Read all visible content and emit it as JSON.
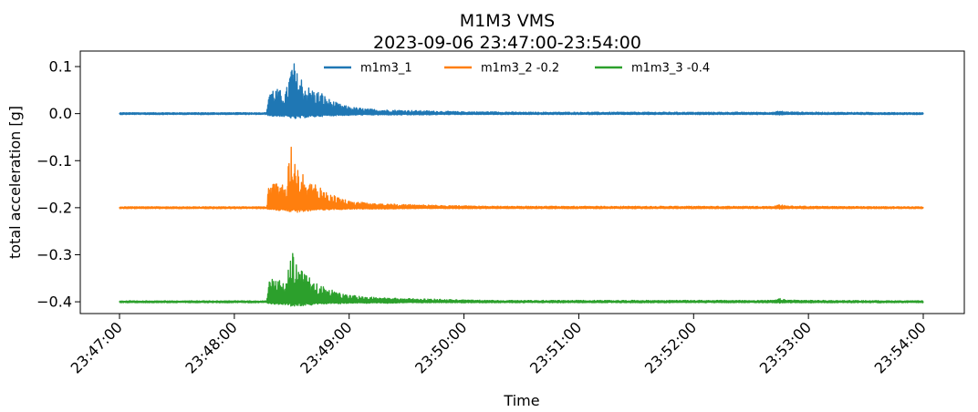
{
  "chart_data": {
    "type": "line",
    "title": "M1M3 VMS",
    "subtitle": "2023-09-06 23:47:00-23:54:00",
    "xlabel": "Time",
    "ylabel": "total acceleration [g]",
    "x_ticks": [
      "23:47:00",
      "23:48:00",
      "23:49:00",
      "23:50:00",
      "23:51:00",
      "23:52:00",
      "23:53:00",
      "23:54:00"
    ],
    "xlim": [
      "23:47:00",
      "23:54:00"
    ],
    "y_ticks": [
      0.1,
      0.0,
      -0.1,
      -0.2,
      -0.3,
      -0.4
    ],
    "y_tick_labels": [
      "0.1",
      "0.0",
      "−0.1",
      "−0.2",
      "−0.3",
      "−0.4"
    ],
    "ylim": [
      -0.425,
      0.133
    ],
    "grid": false,
    "legend_position": "top-center",
    "series": [
      {
        "name": "m1m3_1",
        "color": "#1f77b4",
        "offset": 0.0,
        "baseline": 0.0,
        "envelope_times": [
          "23:47:00",
          "23:48:17",
          "23:48:18",
          "23:48:21",
          "23:48:24",
          "23:48:27",
          "23:48:30",
          "23:48:31",
          "23:48:33",
          "23:48:35",
          "23:48:36",
          "23:48:38",
          "23:48:40",
          "23:48:42",
          "23:48:44",
          "23:48:46",
          "23:48:48",
          "23:48:51",
          "23:48:54",
          "23:48:57",
          "23:49:00",
          "23:49:05",
          "23:49:10",
          "23:49:20",
          "23:49:30",
          "23:49:40",
          "23:49:50",
          "23:50:00",
          "23:50:15",
          "23:50:30",
          "23:51:00",
          "23:51:30",
          "23:52:00",
          "23:52:30",
          "23:52:42",
          "23:52:45",
          "23:52:48",
          "23:53:00",
          "23:54:00"
        ],
        "envelope_upper": [
          0.002,
          0.002,
          0.06,
          0.055,
          0.05,
          0.048,
          0.11,
          0.112,
          0.085,
          0.08,
          0.07,
          0.06,
          0.055,
          0.05,
          0.048,
          0.045,
          0.035,
          0.028,
          0.022,
          0.018,
          0.015,
          0.012,
          0.01,
          0.008,
          0.007,
          0.006,
          0.005,
          0.004,
          0.004,
          0.003,
          0.003,
          0.003,
          0.003,
          0.003,
          0.003,
          0.006,
          0.004,
          0.003,
          0.002
        ],
        "envelope_lower": [
          -0.002,
          -0.002,
          -0.005,
          -0.006,
          -0.006,
          -0.007,
          -0.01,
          -0.012,
          -0.011,
          -0.01,
          -0.009,
          -0.008,
          -0.008,
          -0.007,
          -0.006,
          -0.006,
          -0.005,
          -0.005,
          -0.004,
          -0.004,
          -0.004,
          -0.003,
          -0.003,
          -0.003,
          -0.003,
          -0.003,
          -0.002,
          -0.002,
          -0.002,
          -0.002,
          -0.002,
          -0.002,
          -0.002,
          -0.002,
          -0.002,
          -0.003,
          -0.002,
          -0.002,
          -0.002
        ]
      },
      {
        "name": "m1m3_2 -0.2",
        "color": "#ff7f0e",
        "offset": -0.2,
        "baseline": -0.2,
        "envelope_times": [
          "23:47:00",
          "23:48:17",
          "23:48:18",
          "23:48:21",
          "23:48:24",
          "23:48:27",
          "23:48:30",
          "23:48:31",
          "23:48:33",
          "23:48:35",
          "23:48:36",
          "23:48:38",
          "23:48:40",
          "23:48:42",
          "23:48:44",
          "23:48:46",
          "23:48:48",
          "23:48:51",
          "23:48:54",
          "23:48:57",
          "23:49:00",
          "23:49:05",
          "23:49:10",
          "23:49:20",
          "23:49:30",
          "23:49:40",
          "23:49:50",
          "23:50:00",
          "23:50:15",
          "23:50:30",
          "23:51:00",
          "23:51:30",
          "23:52:00",
          "23:52:30",
          "23:52:42",
          "23:52:45",
          "23:52:48",
          "23:53:00",
          "23:54:00"
        ],
        "envelope_upper": [
          -0.198,
          -0.198,
          -0.14,
          -0.145,
          -0.15,
          -0.15,
          -0.055,
          -0.055,
          -0.11,
          -0.12,
          -0.13,
          -0.14,
          -0.145,
          -0.15,
          -0.155,
          -0.16,
          -0.165,
          -0.172,
          -0.178,
          -0.182,
          -0.185,
          -0.188,
          -0.19,
          -0.192,
          -0.193,
          -0.194,
          -0.195,
          -0.196,
          -0.197,
          -0.197,
          -0.197,
          -0.197,
          -0.197,
          -0.197,
          -0.197,
          -0.192,
          -0.196,
          -0.197,
          -0.198
        ],
        "envelope_lower": [
          -0.202,
          -0.202,
          -0.204,
          -0.205,
          -0.206,
          -0.206,
          -0.21,
          -0.211,
          -0.21,
          -0.209,
          -0.208,
          -0.207,
          -0.207,
          -0.206,
          -0.206,
          -0.205,
          -0.205,
          -0.204,
          -0.204,
          -0.204,
          -0.203,
          -0.203,
          -0.203,
          -0.203,
          -0.202,
          -0.202,
          -0.202,
          -0.202,
          -0.202,
          -0.202,
          -0.202,
          -0.202,
          -0.202,
          -0.202,
          -0.202,
          -0.203,
          -0.202,
          -0.202,
          -0.202
        ]
      },
      {
        "name": "m1m3_3 -0.4",
        "color": "#2ca02c",
        "offset": -0.4,
        "baseline": -0.4,
        "envelope_times": [
          "23:47:00",
          "23:48:17",
          "23:48:18",
          "23:48:21",
          "23:48:24",
          "23:48:27",
          "23:48:30",
          "23:48:31",
          "23:48:33",
          "23:48:35",
          "23:48:36",
          "23:48:38",
          "23:48:40",
          "23:48:42",
          "23:48:44",
          "23:48:46",
          "23:48:48",
          "23:48:51",
          "23:48:54",
          "23:48:57",
          "23:49:00",
          "23:49:05",
          "23:49:10",
          "23:49:20",
          "23:49:30",
          "23:49:40",
          "23:49:50",
          "23:50:00",
          "23:50:15",
          "23:50:30",
          "23:51:00",
          "23:51:30",
          "23:52:00",
          "23:52:30",
          "23:52:42",
          "23:52:45",
          "23:52:48",
          "23:53:00",
          "23:54:00"
        ],
        "envelope_upper": [
          -0.398,
          -0.398,
          -0.345,
          -0.35,
          -0.355,
          -0.358,
          -0.288,
          -0.288,
          -0.32,
          -0.33,
          -0.34,
          -0.345,
          -0.35,
          -0.355,
          -0.36,
          -0.365,
          -0.37,
          -0.375,
          -0.38,
          -0.384,
          -0.386,
          -0.388,
          -0.39,
          -0.392,
          -0.393,
          -0.394,
          -0.395,
          -0.396,
          -0.397,
          -0.397,
          -0.397,
          -0.397,
          -0.397,
          -0.397,
          -0.397,
          -0.393,
          -0.396,
          -0.397,
          -0.398
        ],
        "envelope_lower": [
          -0.402,
          -0.402,
          -0.404,
          -0.405,
          -0.406,
          -0.406,
          -0.41,
          -0.41,
          -0.409,
          -0.408,
          -0.408,
          -0.407,
          -0.407,
          -0.406,
          -0.406,
          -0.405,
          -0.405,
          -0.404,
          -0.404,
          -0.404,
          -0.403,
          -0.403,
          -0.403,
          -0.403,
          -0.402,
          -0.402,
          -0.402,
          -0.402,
          -0.402,
          -0.402,
          -0.402,
          -0.402,
          -0.402,
          -0.402,
          -0.402,
          -0.403,
          -0.402,
          -0.402,
          -0.402
        ]
      }
    ]
  }
}
